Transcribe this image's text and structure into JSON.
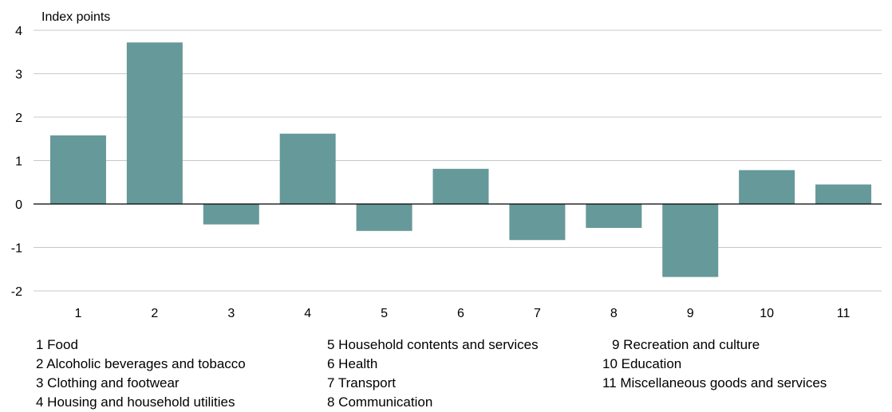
{
  "chart_data": {
    "type": "bar",
    "ylabel": "Index points",
    "xlabel": "",
    "ylim": [
      -2,
      4
    ],
    "yticks": [
      4,
      3,
      2,
      1,
      0,
      -1,
      -2
    ],
    "grid": true,
    "bar_color": "#669999",
    "categories": [
      "1",
      "2",
      "3",
      "4",
      "5",
      "6",
      "7",
      "8",
      "9",
      "10",
      "11"
    ],
    "values": [
      1.58,
      3.72,
      -0.47,
      1.62,
      -0.62,
      0.81,
      -0.83,
      -0.55,
      -1.68,
      0.78,
      0.45
    ],
    "legend": [
      "1 Food",
      "2 Alcoholic beverages and tobacco",
      "3 Clothing and footwear",
      "4 Housing and household utilities",
      "5 Household contents and services",
      "6 Health",
      "7 Transport",
      "8 Communication",
      "9 Recreation and  culture",
      "10 Education",
      "11 Miscellaneous goods and services"
    ]
  }
}
